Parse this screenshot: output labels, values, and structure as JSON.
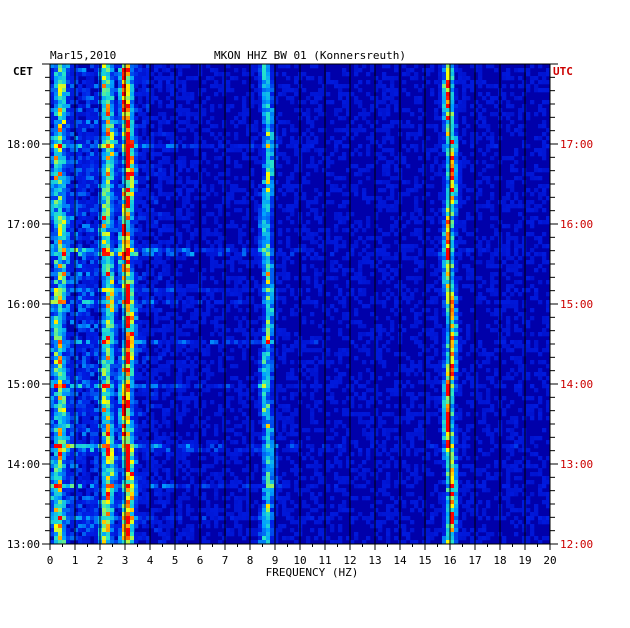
{
  "chart_data": {
    "type": "heatmap",
    "date": "Mar15,2010",
    "title": "MKON HHZ BW 01 (Konnersreuth)",
    "xlabel": "FREQUENCY (HZ)",
    "left_label": "CET",
    "right_label": "UTC",
    "xlim": [
      0,
      20
    ],
    "x_ticks": [
      "0",
      "1",
      "2",
      "3",
      "4",
      "5",
      "6",
      "7",
      "8",
      "9",
      "10",
      "11",
      "12",
      "13",
      "14",
      "15",
      "16",
      "17",
      "18",
      "19",
      "20"
    ],
    "cet_ticks": [
      {
        "hour": 13,
        "label": "13:00"
      },
      {
        "hour": 14,
        "label": "14:00"
      },
      {
        "hour": 15,
        "label": "15:00"
      },
      {
        "hour": 16,
        "label": "16:00"
      },
      {
        "hour": 17,
        "label": "17:00"
      },
      {
        "hour": 18,
        "label": "18:00"
      }
    ],
    "utc_ticks": [
      {
        "hour": 13,
        "label": "12:00"
      },
      {
        "hour": 14,
        "label": "13:00"
      },
      {
        "hour": 15,
        "label": "14:00"
      },
      {
        "hour": 16,
        "label": "15:00"
      },
      {
        "hour": 17,
        "label": "16:00"
      },
      {
        "hour": 18,
        "label": "17:00"
      }
    ],
    "time_range_cet_hours": [
      13.0,
      19.0
    ],
    "spectral_lines_hz": [
      {
        "freq": 0.4,
        "intensity": 0.55
      },
      {
        "freq": 2.3,
        "intensity": 0.7
      },
      {
        "freq": 3.1,
        "intensity": 0.95
      },
      {
        "freq": 8.7,
        "intensity": 0.65
      },
      {
        "freq": 16.0,
        "intensity": 0.92
      }
    ],
    "colors": {
      "background": "#0000aa",
      "low": "#0010d0",
      "mid": "#00a0ff",
      "high": "#ffff00",
      "peak": "#ff0000",
      "utc_label": "#cc0000"
    }
  }
}
